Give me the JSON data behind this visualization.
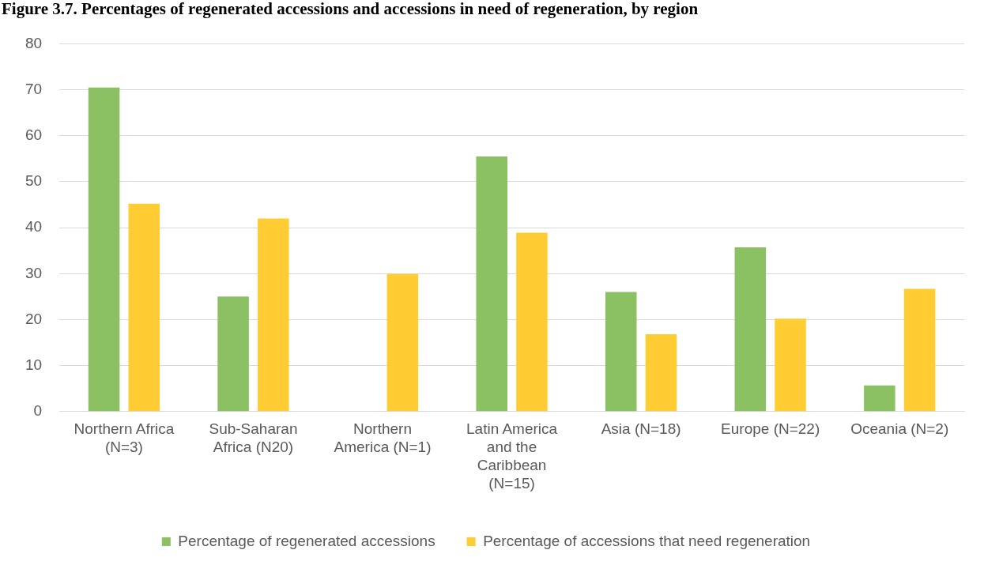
{
  "chart_data": {
    "type": "bar",
    "title": "Figure 3.7. Percentages of regenerated accessions and accessions in need of regeneration, by region",
    "categories": [
      "Northern Africa (N=3)",
      "Sub-Saharan Africa (N20)",
      "Northern America (N=1)",
      "Latin America and the Caribbean (N=15)",
      "Asia (N=18)",
      "Europe (N=22)",
      "Oceania (N=2)"
    ],
    "series": [
      {
        "name": "Percentage of regenerated accessions",
        "color": "#8bc162",
        "values": [
          70.5,
          25,
          null,
          55.5,
          26,
          35.7,
          5.7
        ]
      },
      {
        "name": "Percentage of accessions that need regeneration",
        "color": "#ffcd33",
        "values": [
          45.2,
          42,
          29.9,
          38.9,
          16.8,
          20.2,
          26.7
        ]
      }
    ],
    "ylim": [
      0,
      80
    ],
    "yticks": [
      0,
      10,
      20,
      30,
      40,
      50,
      60,
      70,
      80
    ],
    "grid": "y",
    "legend": "bottom"
  }
}
